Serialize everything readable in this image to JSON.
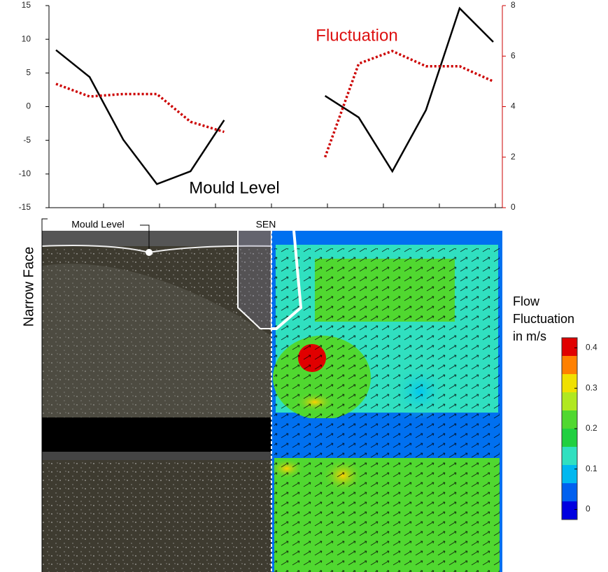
{
  "chart_data": {
    "type": "line",
    "annotations": [
      "Fluctuation",
      "Mould Level"
    ],
    "categories": [
      null,
      null,
      null,
      null,
      null,
      null,
      null,
      null,
      null,
      null,
      null,
      null,
      null,
      null
    ],
    "series": [
      {
        "name": "Mould Level",
        "color": "#000000",
        "style": "solid",
        "axis": "y",
        "values": [
          8.4,
          4.4,
          -4.9,
          -11.5,
          -9.6,
          -2.0,
          null,
          null,
          1.6,
          -1.6,
          -9.6,
          -0.5,
          14.6,
          9.6
        ]
      },
      {
        "name": "Fluctuation",
        "color": "#cc0000",
        "style": "dotted",
        "axis": "y2",
        "values": [
          4.9,
          4.4,
          4.5,
          4.5,
          3.4,
          3.0,
          null,
          null,
          2.0,
          5.7,
          6.2,
          5.6,
          5.6,
          5.0
        ]
      }
    ],
    "ylim": [
      -15,
      15
    ],
    "yticks": [
      -15,
      -10,
      -5,
      0,
      5,
      10,
      15
    ],
    "y2lim": [
      0,
      8
    ],
    "y2ticks": [
      0,
      2,
      4,
      6,
      8
    ],
    "y2color": "#cc0000"
  },
  "image_panel": {
    "labels": {
      "mould_level": "Mould Level",
      "sen": "SEN",
      "narrow_face": "Narrow Face"
    },
    "colorbar": {
      "title": [
        "Flow",
        "Fluctuation",
        "in m/s"
      ],
      "lim": [
        -0.025,
        0.425
      ],
      "ticks": [
        0,
        0.1,
        0.2,
        0.3,
        0.4
      ],
      "colors": [
        "#0000e0",
        "#0060f0",
        "#00b8f0",
        "#30e0c0",
        "#20d040",
        "#50d830",
        "#b0e820",
        "#f0e000",
        "#ff8000",
        "#e00000"
      ]
    }
  }
}
